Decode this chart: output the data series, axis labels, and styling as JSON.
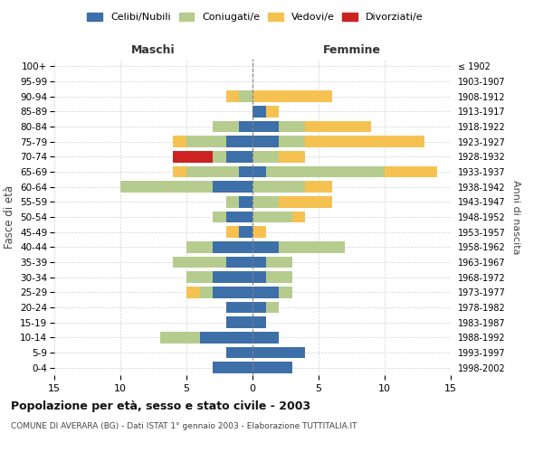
{
  "age_groups": [
    "0-4",
    "5-9",
    "10-14",
    "15-19",
    "20-24",
    "25-29",
    "30-34",
    "35-39",
    "40-44",
    "45-49",
    "50-54",
    "55-59",
    "60-64",
    "65-69",
    "70-74",
    "75-79",
    "80-84",
    "85-89",
    "90-94",
    "95-99",
    "100+"
  ],
  "birth_years": [
    "1998-2002",
    "1993-1997",
    "1988-1992",
    "1983-1987",
    "1978-1982",
    "1973-1977",
    "1968-1972",
    "1963-1967",
    "1958-1962",
    "1953-1957",
    "1948-1952",
    "1943-1947",
    "1938-1942",
    "1933-1937",
    "1928-1932",
    "1923-1927",
    "1918-1922",
    "1913-1917",
    "1908-1912",
    "1903-1907",
    "≤ 1902"
  ],
  "maschi": {
    "celibi": [
      3,
      2,
      4,
      2,
      2,
      3,
      3,
      2,
      3,
      1,
      2,
      1,
      3,
      1,
      2,
      2,
      1,
      0,
      0,
      0,
      0
    ],
    "coniugati": [
      0,
      0,
      3,
      0,
      0,
      1,
      2,
      4,
      2,
      0,
      1,
      1,
      7,
      4,
      1,
      3,
      2,
      0,
      1,
      0,
      0
    ],
    "vedovi": [
      0,
      0,
      0,
      0,
      0,
      1,
      0,
      0,
      0,
      1,
      0,
      0,
      0,
      1,
      0,
      1,
      0,
      0,
      1,
      0,
      0
    ],
    "divorziati": [
      0,
      0,
      0,
      0,
      0,
      0,
      0,
      0,
      0,
      0,
      0,
      0,
      0,
      0,
      3,
      0,
      0,
      0,
      0,
      0,
      0
    ]
  },
  "femmine": {
    "nubili": [
      3,
      4,
      2,
      1,
      1,
      2,
      1,
      1,
      2,
      0,
      0,
      0,
      0,
      1,
      0,
      2,
      2,
      1,
      0,
      0,
      0
    ],
    "coniugate": [
      0,
      0,
      0,
      0,
      1,
      1,
      2,
      2,
      5,
      0,
      3,
      2,
      4,
      9,
      2,
      2,
      2,
      0,
      0,
      0,
      0
    ],
    "vedove": [
      0,
      0,
      0,
      0,
      0,
      0,
      0,
      0,
      0,
      1,
      1,
      4,
      2,
      4,
      2,
      9,
      5,
      1,
      6,
      0,
      0
    ],
    "divorziate": [
      0,
      0,
      0,
      0,
      0,
      0,
      0,
      0,
      0,
      0,
      0,
      0,
      0,
      0,
      0,
      0,
      0,
      0,
      0,
      0,
      0
    ]
  },
  "colors": {
    "celibi_nubili": "#3d6fa8",
    "coniugati": "#b5cc8e",
    "vedovi": "#f5c251",
    "divorziati": "#cc2222"
  },
  "xlim": 15,
  "title": "Popolazione per età, sesso e stato civile - 2003",
  "subtitle": "COMUNE DI AVERARA (BG) - Dati ISTAT 1° gennaio 2003 - Elaborazione TUTTITALIA.IT",
  "ylabel_left": "Fasce di età",
  "ylabel_right": "Anni di nascita",
  "xlabel_maschi": "Maschi",
  "xlabel_femmine": "Femmine",
  "background_color": "#ffffff",
  "legend_labels": [
    "Celibi/Nubili",
    "Coniugati/e",
    "Vedovi/e",
    "Divorziati/e"
  ]
}
